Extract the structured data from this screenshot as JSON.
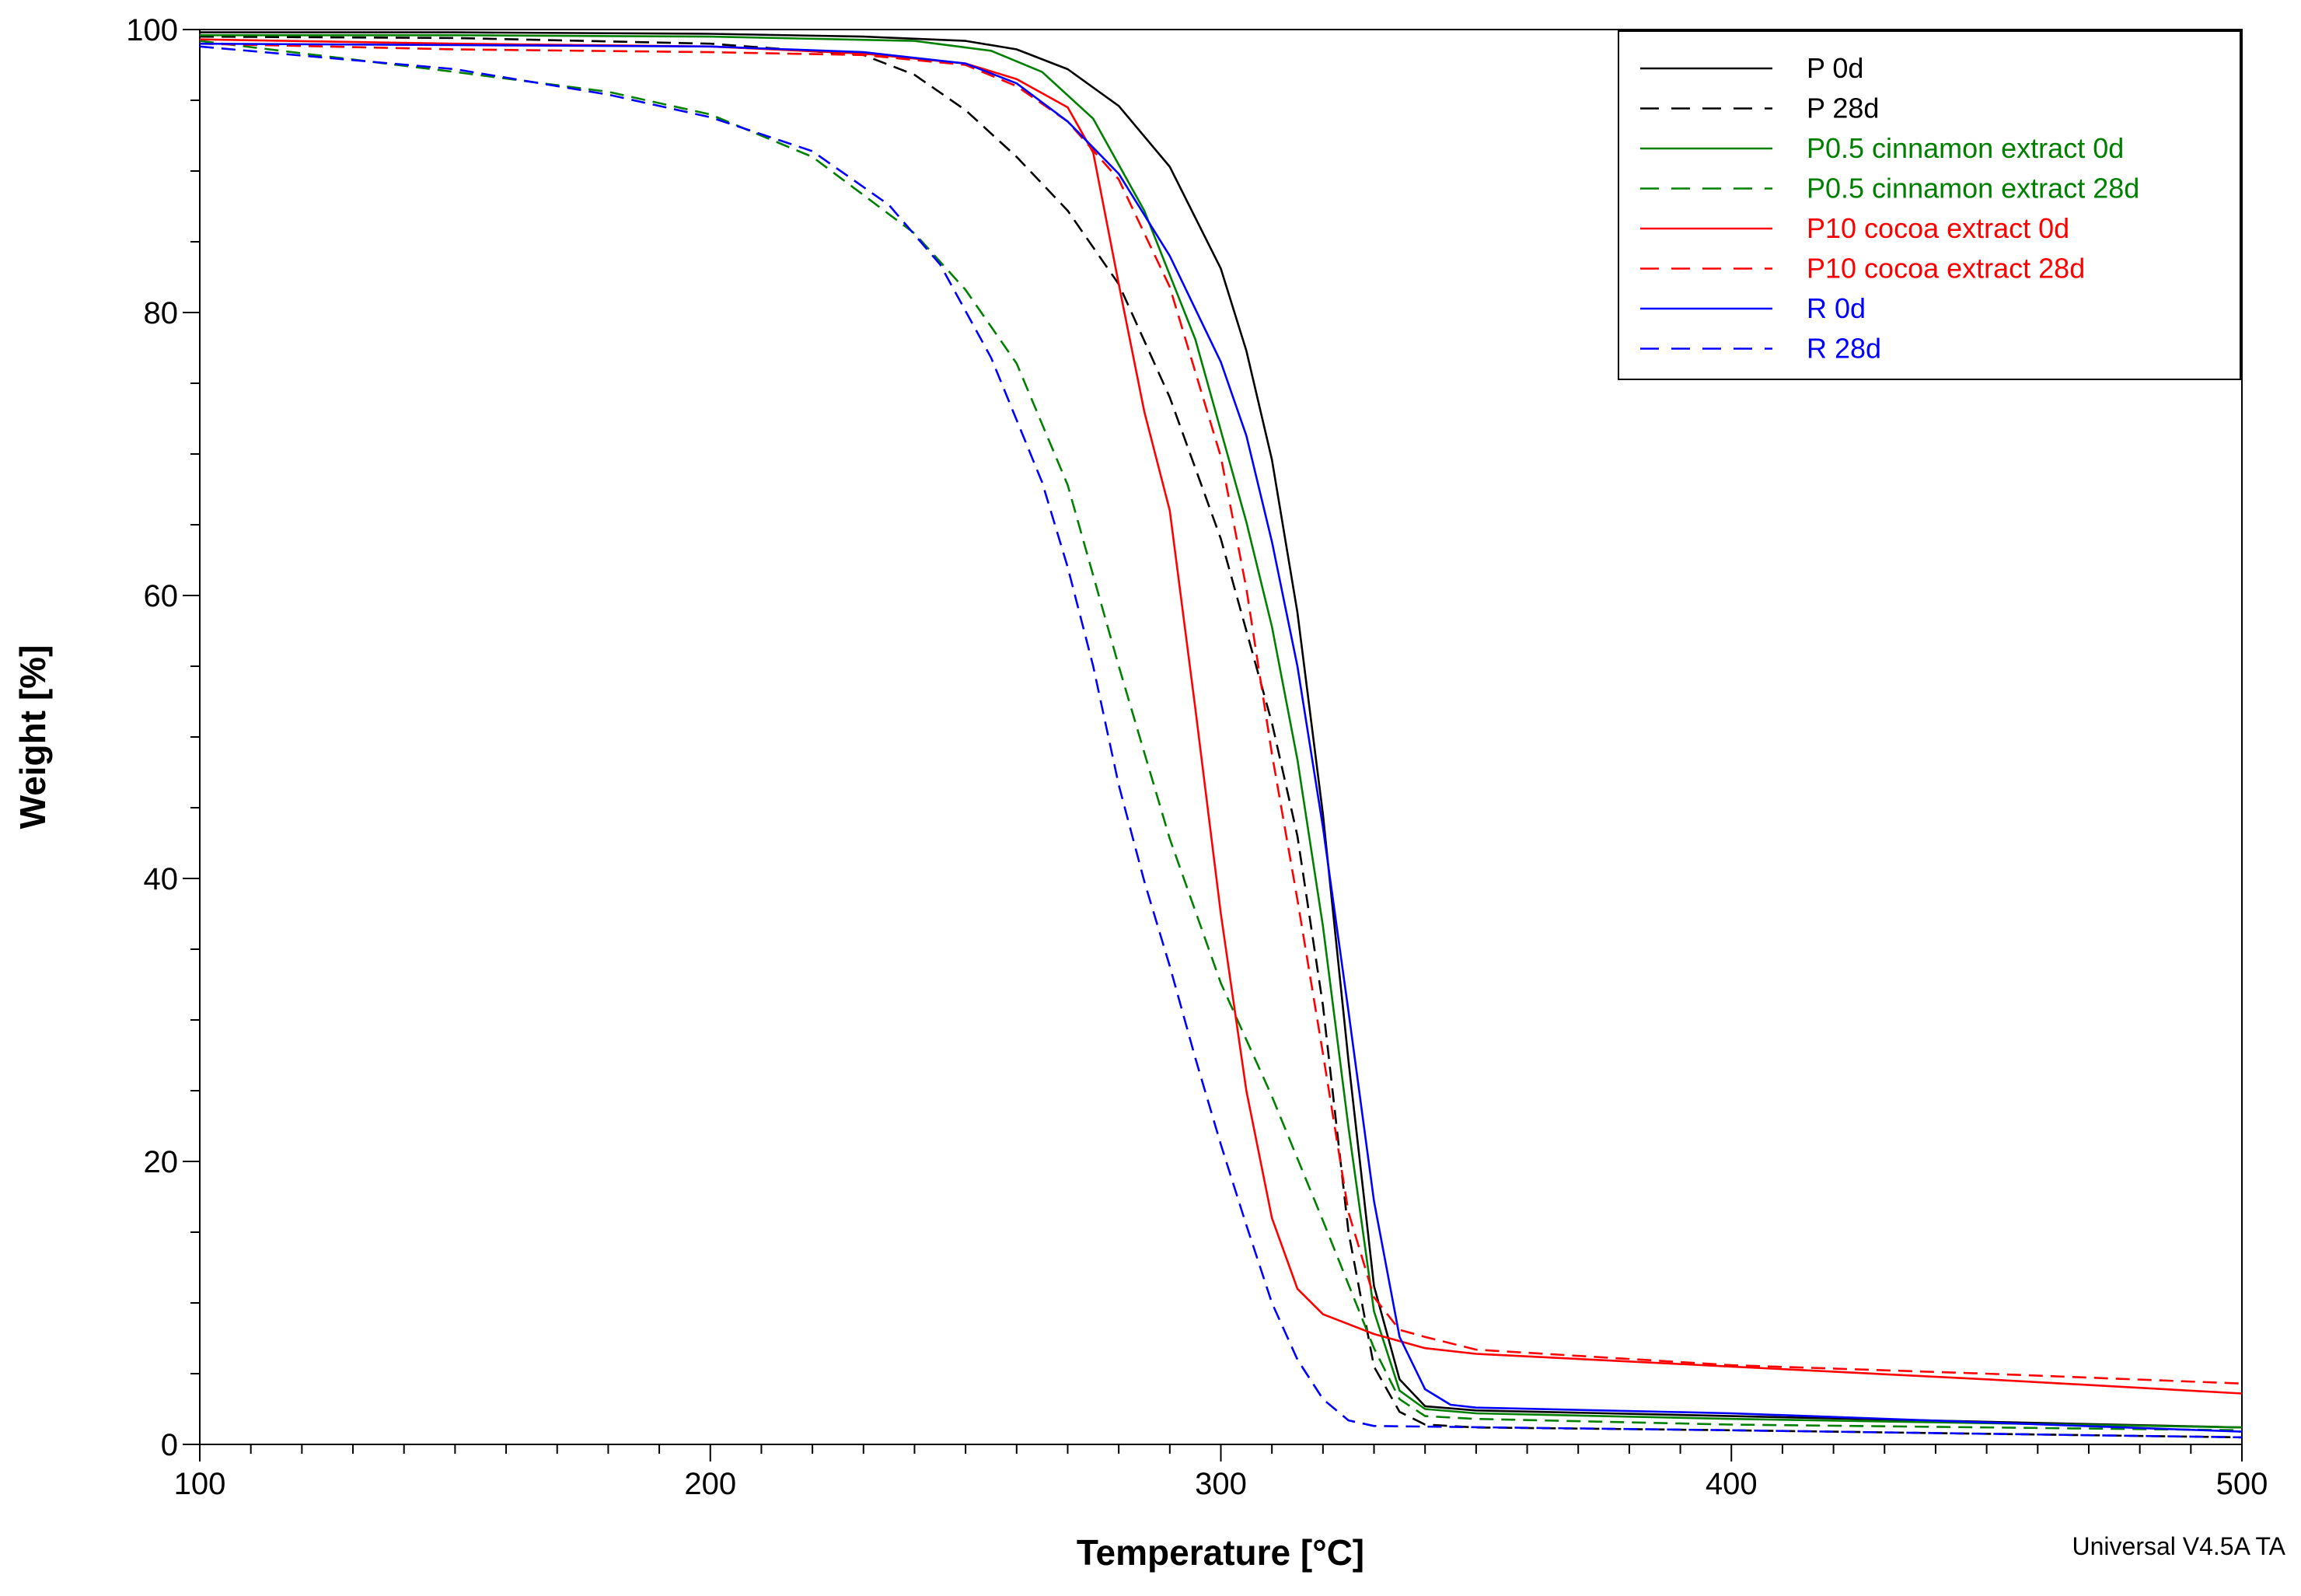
{
  "chart_data": {
    "type": "line",
    "title": "",
    "xlabel": "Temperature [°C]",
    "ylabel": "Weight [%]",
    "xlim": [
      100,
      500
    ],
    "ylim": [
      0,
      100
    ],
    "xticks": [
      100,
      200,
      300,
      400,
      500
    ],
    "yticks": [
      0,
      20,
      40,
      60,
      80,
      100
    ],
    "grid": false,
    "legend_position": "top-right",
    "footer": "Universal V4.5A TA",
    "series": [
      {
        "name": "P 0d",
        "color": "#000000",
        "dash": "solid",
        "x": [
          100,
          150,
          200,
          230,
          250,
          260,
          270,
          280,
          290,
          300,
          305,
          310,
          315,
          320,
          325,
          330,
          335,
          340,
          350,
          400,
          500
        ],
        "y": [
          99.8,
          99.8,
          99.7,
          99.5,
          99.2,
          98.6,
          97.2,
          94.6,
          90.3,
          83.1,
          77.3,
          69.6,
          58.8,
          44.5,
          27.1,
          11.2,
          4.6,
          2.7,
          2.4,
          2.0,
          1.2
        ]
      },
      {
        "name": "P 28d",
        "color": "#000000",
        "dash": "dashed",
        "x": [
          100,
          150,
          200,
          230,
          240,
          250,
          260,
          270,
          280,
          290,
          300,
          310,
          315,
          320,
          325,
          330,
          335,
          340,
          350,
          400,
          500
        ],
        "y": [
          99.5,
          99.4,
          99.0,
          98.2,
          96.8,
          94.3,
          91.0,
          87.2,
          82.0,
          74.0,
          64.0,
          51.0,
          43.0,
          31.0,
          15.0,
          5.5,
          2.3,
          1.4,
          1.2,
          1.0,
          0.5
        ]
      },
      {
        "name": "P0.5 cinnamon extract 0d",
        "color": "#008000",
        "dash": "solid",
        "x": [
          100,
          150,
          200,
          240,
          255,
          265,
          275,
          285,
          295,
          305,
          310,
          315,
          320,
          325,
          330,
          335,
          340,
          350,
          400,
          500
        ],
        "y": [
          99.6,
          99.6,
          99.5,
          99.2,
          98.5,
          97.0,
          93.7,
          87.2,
          78.1,
          65.2,
          57.8,
          48.4,
          36.6,
          22.4,
          9.4,
          3.8,
          2.5,
          2.2,
          1.8,
          1.2
        ]
      },
      {
        "name": "P0.5 cinnamon extract 28d",
        "color": "#008000",
        "dash": "dashed",
        "x": [
          100,
          150,
          180,
          200,
          220,
          240,
          250,
          260,
          270,
          280,
          290,
          300,
          310,
          320,
          330,
          335,
          340,
          350,
          400,
          500
        ],
        "y": [
          99.2,
          97.0,
          95.6,
          94.0,
          91.0,
          85.6,
          81.6,
          76.4,
          67.8,
          55.0,
          42.8,
          32.6,
          24.6,
          15.8,
          6.8,
          3.2,
          2.0,
          1.8,
          1.4,
          1.0
        ]
      },
      {
        "name": "P10 cocoa extract 0d",
        "color": "#ff0000",
        "dash": "solid",
        "x": [
          100,
          150,
          200,
          230,
          250,
          260,
          270,
          275,
          280,
          285,
          290,
          295,
          300,
          305,
          310,
          315,
          320,
          330,
          340,
          350,
          400,
          450,
          500
        ],
        "y": [
          99.3,
          99.0,
          98.8,
          98.3,
          97.6,
          96.5,
          94.5,
          91.3,
          82.0,
          73.0,
          66.0,
          52.0,
          37.5,
          25.0,
          16.0,
          11.0,
          9.2,
          7.8,
          6.8,
          6.4,
          5.5,
          4.6,
          3.6
        ]
      },
      {
        "name": "P10 cocoa extract 28d",
        "color": "#ff0000",
        "dash": "dashed",
        "x": [
          100,
          150,
          200,
          230,
          250,
          260,
          270,
          280,
          290,
          300,
          305,
          310,
          315,
          320,
          325,
          330,
          335,
          340,
          350,
          400,
          450,
          500
        ],
        "y": [
          99.0,
          98.6,
          98.4,
          98.2,
          97.5,
          96.0,
          93.5,
          89.4,
          81.8,
          69.8,
          60.5,
          48.8,
          38.5,
          27.6,
          16.4,
          10.4,
          8.1,
          7.6,
          6.7,
          5.6,
          5.0,
          4.3
        ]
      },
      {
        "name": "R 0d",
        "color": "#0000ff",
        "dash": "solid",
        "x": [
          100,
          150,
          200,
          230,
          250,
          260,
          270,
          280,
          290,
          300,
          305,
          310,
          315,
          320,
          325,
          330,
          335,
          340,
          345,
          350,
          400,
          500
        ],
        "y": [
          99.0,
          98.9,
          98.8,
          98.4,
          97.6,
          96.2,
          93.5,
          89.8,
          84.0,
          76.5,
          71.3,
          63.8,
          55.0,
          43.6,
          30.6,
          17.2,
          7.6,
          3.9,
          2.8,
          2.6,
          2.2,
          0.9
        ]
      },
      {
        "name": "R 28d",
        "color": "#0000ff",
        "dash": "dashed",
        "x": [
          100,
          150,
          180,
          200,
          220,
          235,
          245,
          255,
          265,
          270,
          275,
          280,
          285,
          290,
          295,
          300,
          305,
          310,
          315,
          320,
          325,
          330,
          400,
          500
        ],
        "y": [
          98.8,
          97.2,
          95.4,
          93.8,
          91.4,
          87.6,
          83.4,
          76.8,
          68.0,
          62.0,
          55.0,
          46.6,
          39.8,
          33.8,
          27.3,
          21.2,
          15.5,
          10.0,
          6.0,
          3.2,
          1.7,
          1.3,
          1.0,
          0.5
        ]
      }
    ]
  }
}
